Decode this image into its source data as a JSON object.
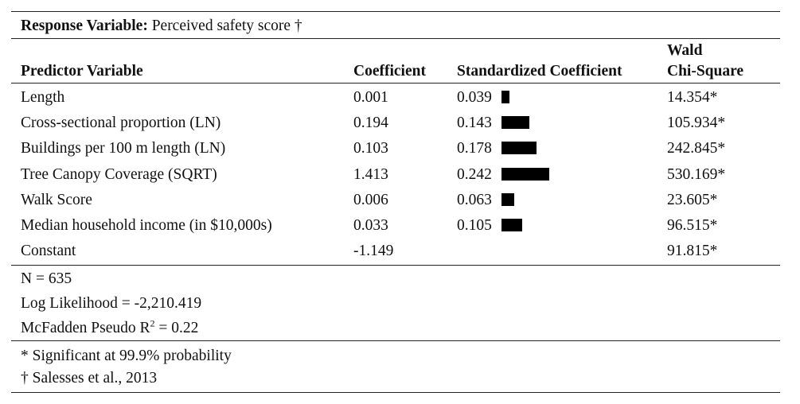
{
  "response": {
    "label": "Response Variable:",
    "value": "Perceived safety score †"
  },
  "headers": {
    "predictor": "Predictor Variable",
    "coefficient": "Coefficient",
    "standardized": "Standardized Coefficient",
    "wald_line1": "Wald",
    "wald_line2": "Chi-Square"
  },
  "rows": [
    {
      "predictor": "Length",
      "coefficient": "0.001",
      "standardized": "0.039",
      "std_value": 0.039,
      "wald": "14.354*"
    },
    {
      "predictor": "Cross-sectional proportion (LN)",
      "coefficient": "0.194",
      "standardized": "0.143",
      "std_value": 0.143,
      "wald": "105.934*"
    },
    {
      "predictor": "Buildings per 100 m length (LN)",
      "coefficient": "0.103",
      "standardized": "0.178",
      "std_value": 0.178,
      "wald": "242.845*"
    },
    {
      "predictor": "Tree Canopy Coverage (SQRT)",
      "coefficient": "1.413",
      "standardized": "0.242",
      "std_value": 0.242,
      "wald": "530.169*"
    },
    {
      "predictor": "Walk Score",
      "coefficient": "0.006",
      "standardized": "0.063",
      "std_value": 0.063,
      "wald": "23.605*"
    },
    {
      "predictor": "Median household income (in $10,000s)",
      "coefficient": "0.033",
      "standardized": "0.105",
      "std_value": 0.105,
      "wald": "96.515*"
    },
    {
      "predictor": "Constant",
      "coefficient": "-1.149",
      "standardized": "",
      "std_value": null,
      "wald": "91.815*"
    }
  ],
  "stats": {
    "n": "N = 635",
    "log_likelihood": "Log Likelihood = -2,210.419",
    "pseudo_r2_prefix": "McFadden Pseudo R",
    "pseudo_r2_sup": "2",
    "pseudo_r2_suffix": " = 0.22"
  },
  "notes": {
    "significance": "* Significant at 99.9% probability",
    "source": "† Salesses et al., 2013"
  }
}
